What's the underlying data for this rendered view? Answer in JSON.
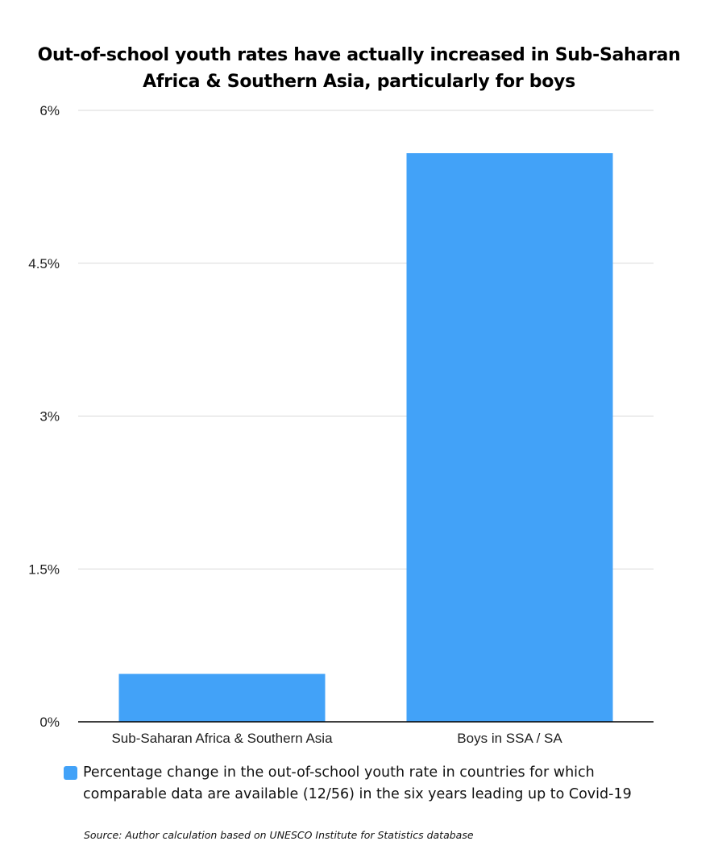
{
  "chart_data": {
    "type": "bar",
    "title": "Out-of-school youth rates have actually increased in Sub-Saharan Africa & Southern Asia, particularly for boys",
    "categories": [
      "Sub-Saharan Africa & Southern Asia",
      "Boys in SSA / SA"
    ],
    "series": [
      {
        "name": "Percentage change in the out-of-school youth rate in countries for which comparable data are available (12/56) in the six years leading up to Covid-19",
        "values": [
          0.47,
          5.58
        ],
        "color": "#42a2f8"
      }
    ],
    "xlabel": "",
    "ylabel": "",
    "ylim": [
      0,
      6
    ],
    "yticks": [
      {
        "value": 0,
        "label": "0%"
      },
      {
        "value": 1.5,
        "label": "1.5%"
      },
      {
        "value": 3,
        "label": "3%"
      },
      {
        "value": 4.5,
        "label": "4.5%"
      },
      {
        "value": 6,
        "label": "6%"
      }
    ],
    "grid": true,
    "gridline_color": "#d9d9d9",
    "legend_position": "bottom"
  },
  "legend": {
    "label": "Percentage change in the out-of-school youth rate in countries for which comparable data are available (12/56) in the six years leading up to Covid-19",
    "swatch_color": "#42a2f8"
  },
  "source": "Source: Author calculation based on UNESCO Institute for Statistics database"
}
